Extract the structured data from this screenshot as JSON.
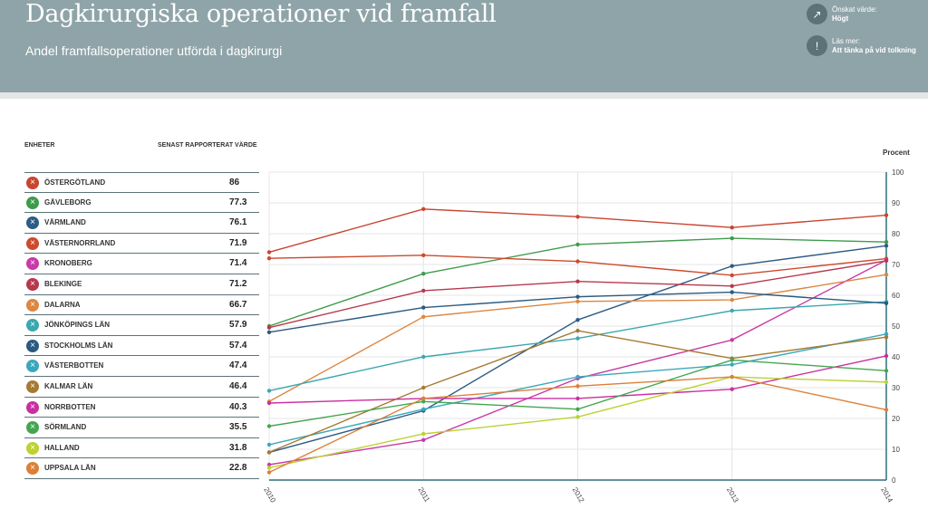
{
  "header": {
    "title": "Dagkirurgiska operationer vid framfall",
    "subtitle": "Andel framfallsoperationer utförda i dagkirurgi",
    "desired_label": "Önskat värde:",
    "desired_value": "Högt",
    "read_more_label": "Läs mer:",
    "read_more_link": "Att tänka på vid tolkning"
  },
  "table": {
    "col_units": "ENHETER",
    "col_latest": "SENAST RAPPORTERAT VÄRDE",
    "rows": [
      {
        "name": "ÖSTERGÖTLAND",
        "value": "86",
        "color": "#c9452f"
      },
      {
        "name": "GÄVLEBORG",
        "value": "77.3",
        "color": "#3f9b4c"
      },
      {
        "name": "VÄRMLAND",
        "value": "76.1",
        "color": "#2e5c84"
      },
      {
        "name": "VÄSTERNORRLAND",
        "value": "71.9",
        "color": "#cc4a2c"
      },
      {
        "name": "KRONOBERG",
        "value": "71.4",
        "color": "#c93aa6"
      },
      {
        "name": "BLEKINGE",
        "value": "71.2",
        "color": "#b7384e"
      },
      {
        "name": "DALARNA",
        "value": "66.7",
        "color": "#dc8640"
      },
      {
        "name": "JÖNKÖPINGS LÄN",
        "value": "57.9",
        "color": "#3aa8b0"
      },
      {
        "name": "STOCKHOLMS LÄN",
        "value": "57.4",
        "color": "#2a5a80"
      },
      {
        "name": "VÄSTERBOTTEN",
        "value": "47.4",
        "color": "#3aa8bc"
      },
      {
        "name": "KALMAR LÄN",
        "value": "46.4",
        "color": "#a57a32"
      },
      {
        "name": "NORRBOTTEN",
        "value": "40.3",
        "color": "#c92fa0"
      },
      {
        "name": "SÖRMLAND",
        "value": "35.5",
        "color": "#44a650"
      },
      {
        "name": "HALLAND",
        "value": "31.8",
        "color": "#bcd232"
      },
      {
        "name": "UPPSALA LÄN",
        "value": "22.8",
        "color": "#dc7f38"
      }
    ]
  },
  "chart_data": {
    "type": "line",
    "ylabel": "Procent",
    "ylim": [
      0,
      100
    ],
    "yticks": [
      0,
      10,
      20,
      30,
      40,
      50,
      60,
      70,
      80,
      90,
      100
    ],
    "x": [
      "2010",
      "2011",
      "2012",
      "2013",
      "2014"
    ],
    "series": [
      {
        "name": "ÖSTERGÖTLAND",
        "color": "#c9452f",
        "values": [
          74,
          88,
          85.5,
          82,
          86
        ]
      },
      {
        "name": "GÄVLEBORG",
        "color": "#3f9b4c",
        "values": [
          50,
          67,
          76.5,
          78.5,
          77.3
        ]
      },
      {
        "name": "VÄRMLAND",
        "color": "#2e5c84",
        "values": [
          9,
          22.5,
          52,
          69.5,
          76.1
        ]
      },
      {
        "name": "VÄSTERNORRLAND",
        "color": "#cc4a2c",
        "values": [
          72,
          73,
          71,
          66.5,
          71.9
        ]
      },
      {
        "name": "KRONOBERG",
        "color": "#c93aa6",
        "values": [
          5,
          13,
          33,
          45.5,
          71.4
        ]
      },
      {
        "name": "BLEKINGE",
        "color": "#b7384e",
        "values": [
          49.5,
          61.5,
          64.5,
          63,
          71.2
        ]
      },
      {
        "name": "DALARNA",
        "color": "#dc8640",
        "values": [
          25.5,
          53,
          58,
          58.5,
          66.7
        ]
      },
      {
        "name": "JÖNKÖPINGS LÄN",
        "color": "#3aa8b0",
        "values": [
          29,
          40,
          46,
          55,
          57.9
        ]
      },
      {
        "name": "STOCKHOLMS LÄN",
        "color": "#2a5a80",
        "values": [
          48,
          56,
          59.5,
          61,
          57.4
        ]
      },
      {
        "name": "VÄSTERBOTTEN",
        "color": "#3aa8bc",
        "values": [
          11.5,
          23,
          33.5,
          37.5,
          47.4
        ]
      },
      {
        "name": "KALMAR LÄN",
        "color": "#a57a32",
        "values": [
          9,
          30,
          48.5,
          39.5,
          46.4
        ]
      },
      {
        "name": "NORRBOTTEN",
        "color": "#c92fa0",
        "values": [
          25,
          26.5,
          26.5,
          29.5,
          40.3
        ]
      },
      {
        "name": "SÖRMLAND",
        "color": "#44a650",
        "values": [
          17.5,
          25.5,
          23,
          39,
          35.5
        ]
      },
      {
        "name": "HALLAND",
        "color": "#bcd232",
        "values": [
          4,
          15,
          20.5,
          33.5,
          31.8
        ]
      },
      {
        "name": "UPPSALA LÄN",
        "color": "#dc7f38",
        "values": [
          2.5,
          26.5,
          30.5,
          33.5,
          22.8
        ]
      }
    ]
  }
}
